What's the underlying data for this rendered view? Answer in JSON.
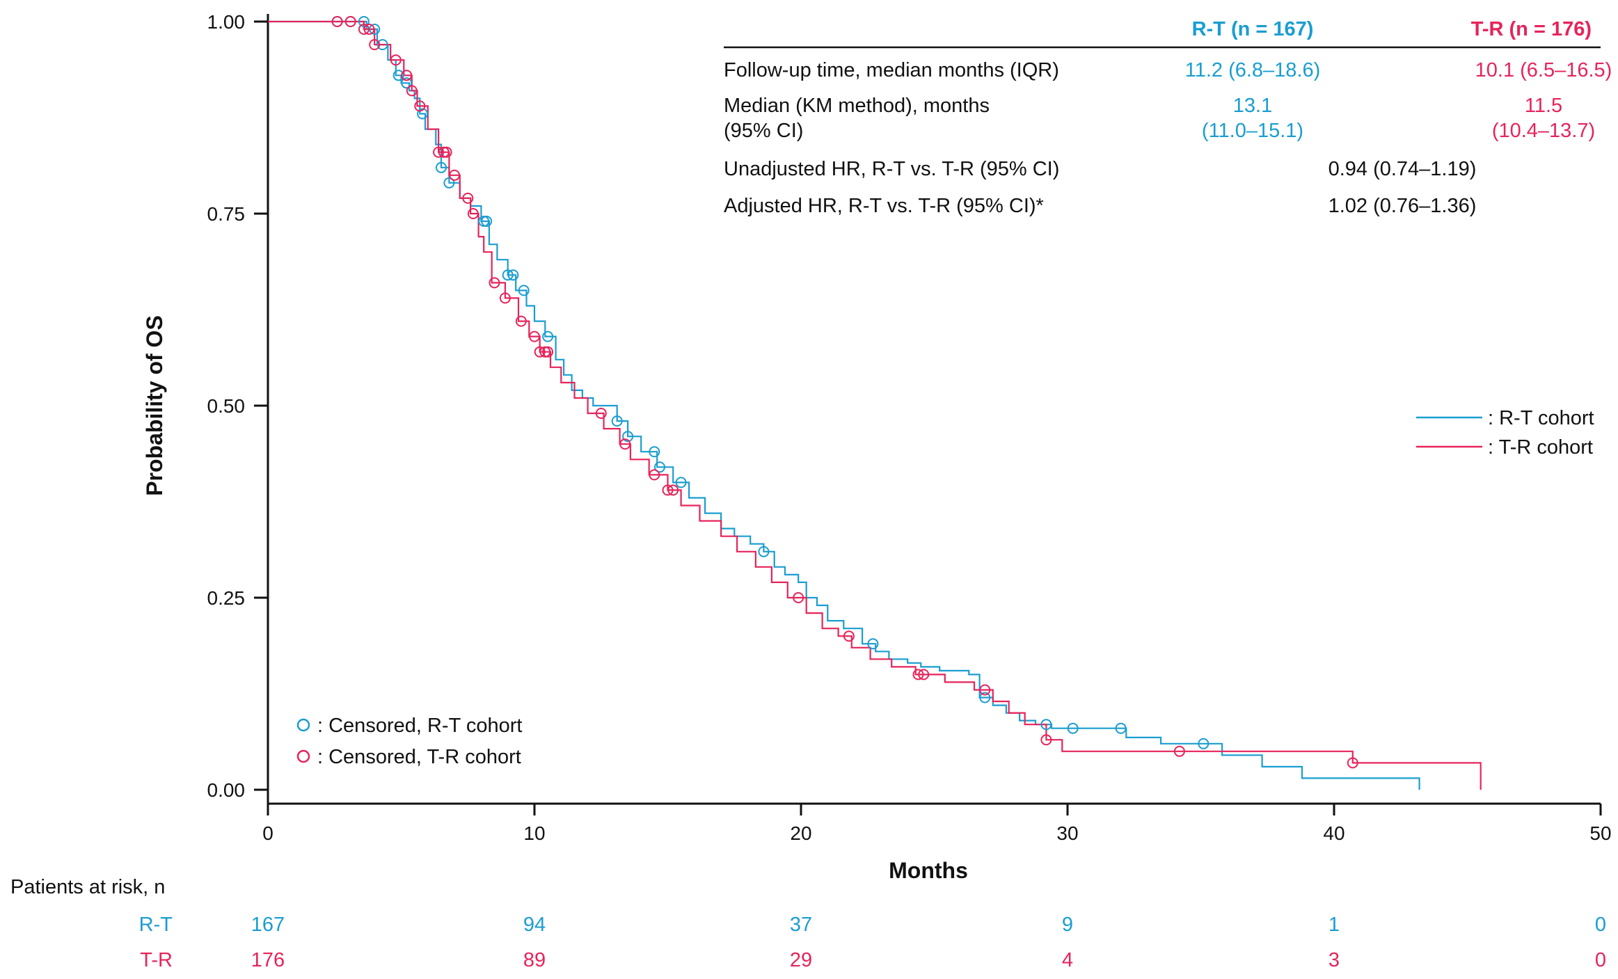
{
  "chart_data": {
    "type": "line",
    "subtype": "kaplan-meier",
    "ylabel": "Probability of OS",
    "xlabel": "Months",
    "xlim": [
      0,
      50
    ],
    "ylim": [
      0,
      1
    ],
    "x_ticks": [
      "0",
      "10",
      "20",
      "30",
      "40",
      "50"
    ],
    "y_ticks": [
      "0.00",
      "0.25",
      "0.50",
      "0.75",
      "1.00"
    ],
    "colors": {
      "rt": "#1a9dd1",
      "tr": "#e6245a"
    },
    "series": [
      {
        "name": "R-T cohort",
        "key": "rt",
        "x": [
          0,
          3.7,
          4.1,
          4.5,
          4.8,
          5.0,
          5.3,
          5.5,
          5.7,
          5.9,
          6.3,
          6.5,
          6.8,
          7.2,
          7.6,
          8.0,
          8.3,
          8.6,
          9.0,
          9.3,
          9.7,
          10.0,
          10.4,
          10.8,
          11.1,
          11.4,
          11.8,
          12.2,
          13.1,
          13.5,
          14.0,
          14.6,
          15.2,
          15.8,
          16.4,
          17.0,
          17.5,
          18.1,
          18.6,
          19.0,
          19.4,
          19.9,
          20.2,
          20.6,
          21.0,
          21.6,
          22.3,
          22.8,
          23.3,
          24.0,
          24.5,
          25.2,
          26.3,
          26.7,
          27.2,
          27.7,
          28.2,
          28.8,
          29.4,
          30.0,
          31.0,
          32.2,
          33.5,
          35.8,
          37.3,
          38.8,
          43.2
        ],
        "y": [
          1.0,
          0.99,
          0.97,
          0.95,
          0.93,
          0.92,
          0.91,
          0.9,
          0.88,
          0.86,
          0.84,
          0.81,
          0.79,
          0.77,
          0.76,
          0.74,
          0.71,
          0.69,
          0.67,
          0.65,
          0.63,
          0.61,
          0.59,
          0.56,
          0.54,
          0.52,
          0.51,
          0.5,
          0.48,
          0.46,
          0.44,
          0.42,
          0.4,
          0.38,
          0.36,
          0.34,
          0.33,
          0.32,
          0.31,
          0.29,
          0.28,
          0.27,
          0.25,
          0.24,
          0.22,
          0.21,
          0.19,
          0.18,
          0.17,
          0.165,
          0.16,
          0.155,
          0.15,
          0.12,
          0.11,
          0.1,
          0.09,
          0.085,
          0.08,
          0.08,
          0.08,
          0.068,
          0.06,
          0.045,
          0.03,
          0.015,
          0.0
        ],
        "censored_x": [
          2.6,
          3.1,
          3.6,
          4.0,
          4.3,
          4.9,
          5.2,
          5.8,
          6.5,
          6.8,
          8.1,
          8.2,
          9.0,
          9.2,
          9.6,
          10.5,
          13.1,
          13.5,
          14.5,
          14.7,
          15.5,
          18.6,
          22.7,
          26.9,
          29.2,
          30.2,
          32.0,
          35.1
        ],
        "censored_y": [
          1.0,
          1.0,
          0.99,
          0.98,
          0.96,
          0.94,
          0.93,
          0.875,
          0.83,
          0.79,
          0.745,
          0.735,
          0.69,
          0.675,
          0.65,
          0.615,
          0.505,
          0.46,
          0.432,
          0.425,
          0.405,
          0.315,
          0.205,
          0.115,
          0.08,
          0.08,
          0.08,
          0.058
        ]
      },
      {
        "name": "T-R cohort",
        "key": "tr",
        "x": [
          0,
          3.6,
          4.0,
          4.6,
          5.1,
          5.4,
          5.6,
          6.0,
          6.4,
          6.8,
          7.2,
          7.6,
          7.9,
          8.1,
          8.4,
          8.9,
          9.4,
          9.8,
          10.2,
          10.6,
          11.0,
          11.5,
          12.0,
          12.6,
          13.2,
          13.6,
          14.3,
          15.0,
          15.5,
          16.2,
          17.0,
          17.6,
          18.3,
          18.9,
          19.5,
          20.2,
          20.8,
          21.4,
          21.9,
          22.6,
          23.4,
          24.3,
          25.4,
          26.5,
          27.2,
          27.8,
          28.4,
          29.2,
          29.8,
          40.7,
          45.5
        ],
        "y": [
          1.0,
          0.99,
          0.97,
          0.95,
          0.93,
          0.91,
          0.89,
          0.86,
          0.83,
          0.8,
          0.77,
          0.75,
          0.72,
          0.7,
          0.66,
          0.64,
          0.61,
          0.59,
          0.57,
          0.55,
          0.53,
          0.51,
          0.49,
          0.47,
          0.45,
          0.43,
          0.41,
          0.39,
          0.37,
          0.35,
          0.33,
          0.31,
          0.29,
          0.27,
          0.25,
          0.23,
          0.21,
          0.2,
          0.185,
          0.17,
          0.16,
          0.15,
          0.14,
          0.13,
          0.115,
          0.1,
          0.085,
          0.065,
          0.05,
          0.035,
          0.0
        ],
        "censored_x": [
          2.6,
          3.1,
          3.6,
          3.8,
          4.0,
          4.8,
          5.2,
          5.4,
          5.7,
          6.4,
          6.6,
          6.7,
          7.0,
          7.5,
          7.7,
          8.5,
          8.9,
          9.5,
          10.0,
          10.2,
          10.4,
          10.5,
          12.5,
          13.4,
          14.5,
          15.0,
          15.2,
          19.9,
          21.8,
          24.4,
          24.6,
          26.9,
          29.2,
          34.2,
          40.7
        ],
        "censored_y": [
          1.0,
          1.0,
          0.99,
          0.985,
          0.985,
          0.94,
          0.94,
          0.915,
          0.87,
          0.815,
          0.8,
          0.79,
          0.775,
          0.745,
          0.745,
          0.655,
          0.645,
          0.635,
          0.595,
          0.585,
          0.58,
          0.56,
          0.482,
          0.44,
          0.402,
          0.388,
          0.38,
          0.24,
          0.193,
          0.143,
          0.143,
          0.115,
          0.06,
          0.048,
          0.033
        ]
      }
    ]
  },
  "summary_table": {
    "col_rt": "R-T (n = 167)",
    "col_tr": "T-R (n = 176)",
    "rows": {
      "followup_label": "Follow-up time, median months (IQR)",
      "followup_rt": "11.2 (6.8–18.6)",
      "followup_tr": "10.1 (6.5–16.5)",
      "median_label_1": "Median (KM method), months",
      "median_label_2": "(95% CI)",
      "median_rt_1": "13.1",
      "median_rt_2": "(11.0–15.1)",
      "median_tr_1": "11.5",
      "median_tr_2": "(10.4–13.7)",
      "unadj_label": "Unadjusted HR, R-T vs. T-R (95% CI)",
      "unadj_value": "0.94 (0.74–1.19)",
      "adj_label": "Adjusted HR, R-T vs. T-R (95% CI)*",
      "adj_value": "1.02 (0.76–1.36)"
    }
  },
  "legend": {
    "rt_line": ": R-T cohort",
    "tr_line": ": T-R cohort",
    "rt_censored": ": Censored, R-T cohort",
    "tr_censored": ": Censored, T-R cohort"
  },
  "risk_table": {
    "title": "Patients at risk, n",
    "rt_label": "R-T",
    "tr_label": "T-R",
    "rt_values": [
      "167",
      "94",
      "37",
      "9",
      "1",
      "0"
    ],
    "tr_values": [
      "176",
      "89",
      "29",
      "4",
      "3",
      "0"
    ]
  }
}
